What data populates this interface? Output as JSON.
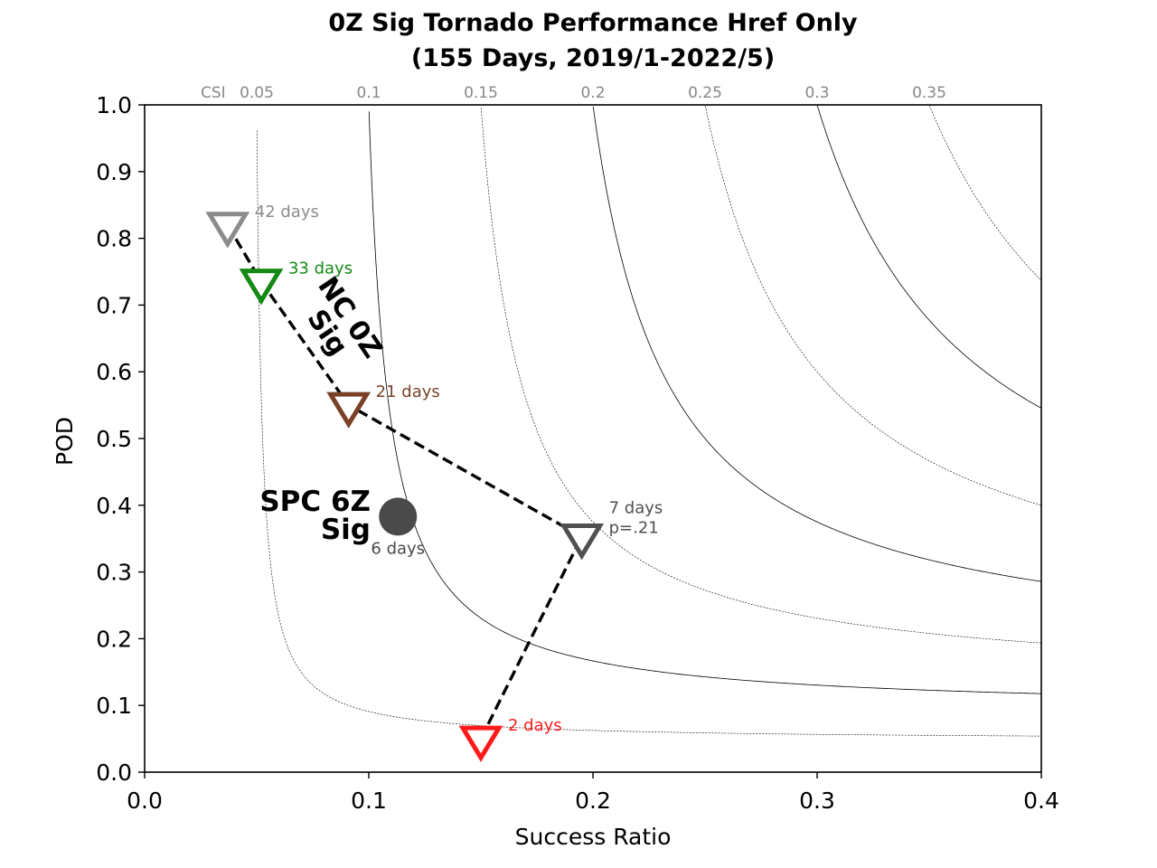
{
  "chart_data": {
    "type": "scatter",
    "title": "0Z Sig Tornado Performance Href Only",
    "subtitle": "(155 Days, 2019/1-2022/5)",
    "xlabel": "Success Ratio",
    "ylabel": "POD",
    "xlim": [
      0.0,
      0.4
    ],
    "ylim": [
      0.0,
      1.0
    ],
    "xticks": [
      "0.0",
      "0.1",
      "0.2",
      "0.3",
      "0.4"
    ],
    "yticks": [
      "0.0",
      "0.1",
      "0.2",
      "0.3",
      "0.4",
      "0.5",
      "0.6",
      "0.7",
      "0.8",
      "0.9",
      "1.0"
    ],
    "grid": false,
    "csi_label": "CSI",
    "csi_contours": [
      {
        "label": "0.05",
        "csi": 0.05,
        "style": "dotted"
      },
      {
        "label": "0.1",
        "csi": 0.1,
        "style": "solid"
      },
      {
        "label": "0.15",
        "csi": 0.15,
        "style": "dotted"
      },
      {
        "label": "0.2",
        "csi": 0.2,
        "style": "solid"
      },
      {
        "label": "0.25",
        "csi": 0.25,
        "style": "dotted"
      },
      {
        "label": "0.3",
        "csi": 0.3,
        "style": "solid"
      },
      {
        "label": "0.35",
        "csi": 0.35,
        "style": "dotted"
      }
    ],
    "series": [
      {
        "name": "NC 0Z Sig",
        "marker": "triangle-down",
        "points": [
          {
            "x": 0.037,
            "y": 0.82,
            "label": "42 days",
            "color": "#8c8c8c"
          },
          {
            "x": 0.052,
            "y": 0.735,
            "label": "33 days",
            "color": "#138a13"
          },
          {
            "x": 0.091,
            "y": 0.55,
            "label": "21 days",
            "color": "#7a4128"
          },
          {
            "x": 0.195,
            "y": 0.353,
            "label": "7 days",
            "label2": "p=.21",
            "color": "#505050"
          },
          {
            "x": 0.15,
            "y": 0.05,
            "label": "2 days",
            "color": "#ff1a1a"
          }
        ]
      },
      {
        "name": "SPC 6Z Sig",
        "marker": "circle",
        "points": [
          {
            "x": 0.113,
            "y": 0.383,
            "label": "6 days",
            "color": "#4a4a4a"
          }
        ]
      }
    ],
    "annotations": [
      {
        "text_line1": "NC 0Z",
        "text_line2": "Sig"
      },
      {
        "text_line1": "SPC 6Z",
        "text_line2": "Sig"
      }
    ]
  }
}
